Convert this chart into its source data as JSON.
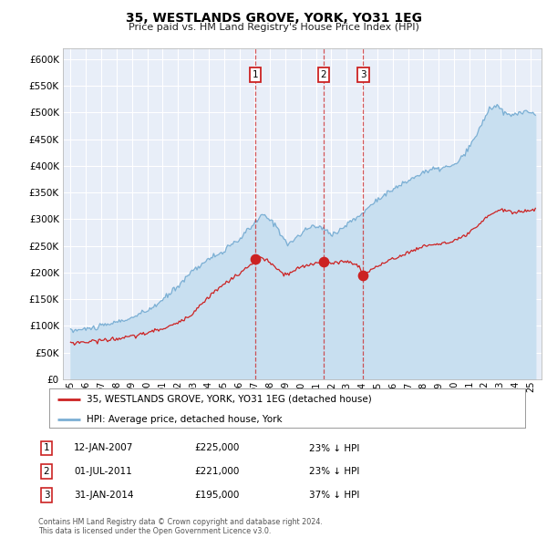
{
  "title": "35, WESTLANDS GROVE, YORK, YO31 1EG",
  "subtitle": "Price paid vs. HM Land Registry's House Price Index (HPI)",
  "hpi_color": "#7bafd4",
  "hpi_fill_color": "#c8dff0",
  "price_color": "#cc2222",
  "background_color": "#e8eef8",
  "plot_bg_color": "#e8eef8",
  "grid_color": "#ffffff",
  "ylim": [
    0,
    620000
  ],
  "yticks": [
    0,
    50000,
    100000,
    150000,
    200000,
    250000,
    300000,
    350000,
    400000,
    450000,
    500000,
    550000,
    600000
  ],
  "xlim_start": 1994.5,
  "xlim_end": 2025.7,
  "sale_dates": [
    2007.04,
    2011.5,
    2014.08
  ],
  "sale_prices": [
    225000,
    221000,
    195000
  ],
  "sale_labels": [
    "1",
    "2",
    "3"
  ],
  "legend_entries": [
    "35, WESTLANDS GROVE, YORK, YO31 1EG (detached house)",
    "HPI: Average price, detached house, York"
  ],
  "table_rows": [
    {
      "label": "1",
      "date": "12-JAN-2007",
      "price": "£225,000",
      "pct": "23% ↓ HPI"
    },
    {
      "label": "2",
      "date": "01-JUL-2011",
      "price": "£221,000",
      "pct": "23% ↓ HPI"
    },
    {
      "label": "3",
      "date": "31-JAN-2014",
      "price": "£195,000",
      "pct": "37% ↓ HPI"
    }
  ],
  "footer": "Contains HM Land Registry data © Crown copyright and database right 2024.\nThis data is licensed under the Open Government Licence v3.0."
}
